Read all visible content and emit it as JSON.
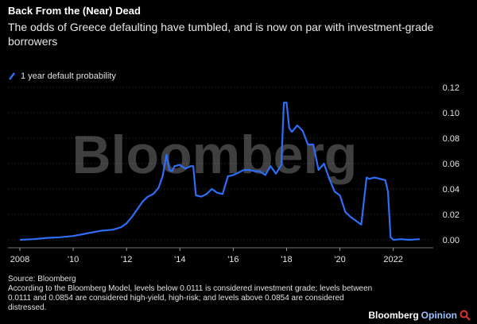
{
  "header": {
    "title": "Back From the (Near) Dead",
    "subtitle": "The odds of Greece defaulting have tumbled, and is now on par with investment-grade borrowers"
  },
  "legend": {
    "label": "1 year default probability"
  },
  "watermark": "Bloomberg",
  "footer": {
    "source": "Source: Bloomberg",
    "note": "According to the Bloomberg Model, levels below 0.0111 is considered investment grade; levels between 0.0111 and 0.0854 are considered high-yield, high-risk; and levels above 0.0854 are considered distressed."
  },
  "brand": {
    "part1": "Bloomberg",
    "part2": "Opinion",
    "icon": "magnifier-icon"
  },
  "colors": {
    "background": "#000000",
    "line": "#2f6df6",
    "grid": "#555555",
    "text": "#ffffff"
  },
  "chart_data": {
    "type": "line",
    "title": "Back From the (Near) Dead",
    "xlabel": "",
    "ylabel": "",
    "xlim": [
      2008,
      2023.5
    ],
    "ylim": [
      -0.005,
      0.12
    ],
    "xticks": [
      2008,
      2010,
      2012,
      2014,
      2016,
      2018,
      2020,
      2022
    ],
    "xtick_labels": [
      "2008",
      "'10",
      "'12",
      "'14",
      "'16",
      "'18",
      "'20",
      "2022"
    ],
    "yticks": [
      0,
      0.02,
      0.04,
      0.06,
      0.08,
      0.1,
      0.12
    ],
    "ytick_labels": [
      "0.00",
      "0.02",
      "0.04",
      "0.06",
      "0.08",
      "0.10",
      "0.12"
    ],
    "y_axis_position": "right",
    "grid": "horizontal",
    "legend_position": "top-left",
    "series": [
      {
        "name": "1 year default probability",
        "x": [
          2008.0,
          2008.5,
          2009.0,
          2009.5,
          2010.0,
          2010.5,
          2011.0,
          2011.5,
          2011.8,
          2012.0,
          2012.2,
          2012.4,
          2012.6,
          2012.8,
          2013.0,
          2013.2,
          2013.35,
          2013.5,
          2013.6,
          2013.7,
          2013.8,
          2014.0,
          2014.2,
          2014.4,
          2014.5,
          2014.6,
          2014.8,
          2015.0,
          2015.2,
          2015.4,
          2015.6,
          2015.8,
          2016.0,
          2016.2,
          2016.4,
          2016.6,
          2016.8,
          2017.0,
          2017.2,
          2017.4,
          2017.6,
          2017.8,
          2017.9,
          2018.0,
          2018.1,
          2018.2,
          2018.4,
          2018.6,
          2018.8,
          2019.0,
          2019.2,
          2019.4,
          2019.6,
          2019.8,
          2020.0,
          2020.2,
          2020.4,
          2020.6,
          2020.8,
          2021.0,
          2021.1,
          2021.3,
          2021.5,
          2021.7,
          2021.8,
          2021.9,
          2022.0,
          2022.3,
          2022.6,
          2023.0
        ],
        "y": [
          0.0,
          0.0005,
          0.0015,
          0.002,
          0.003,
          0.005,
          0.007,
          0.008,
          0.01,
          0.013,
          0.018,
          0.024,
          0.03,
          0.034,
          0.036,
          0.041,
          0.05,
          0.067,
          0.055,
          0.054,
          0.058,
          0.059,
          0.056,
          0.058,
          0.058,
          0.035,
          0.034,
          0.036,
          0.04,
          0.037,
          0.036,
          0.05,
          0.051,
          0.053,
          0.055,
          0.055,
          0.054,
          0.054,
          0.051,
          0.058,
          0.052,
          0.059,
          0.108,
          0.108,
          0.088,
          0.085,
          0.09,
          0.086,
          0.075,
          0.075,
          0.055,
          0.06,
          0.048,
          0.038,
          0.035,
          0.022,
          0.018,
          0.015,
          0.012,
          0.049,
          0.048,
          0.049,
          0.048,
          0.047,
          0.038,
          0.002,
          0.0,
          0.0005,
          0.0,
          0.0005
        ]
      }
    ]
  }
}
